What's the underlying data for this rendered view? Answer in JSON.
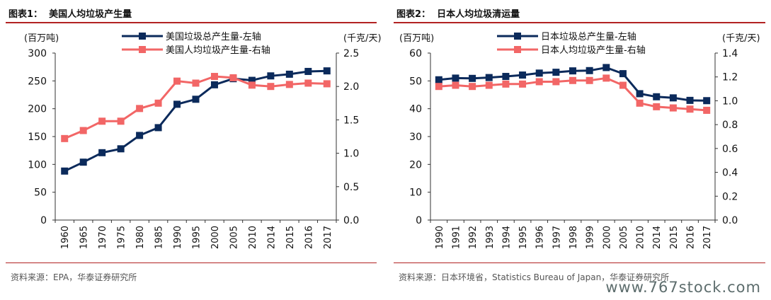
{
  "figures": [
    {
      "title": "图表1：  美国人均垃圾产生量",
      "source": "资料来源：EPA，华泰证券研究所",
      "chart_data": {
        "type": "line",
        "categories": [
          "1960",
          "1965",
          "1970",
          "1975",
          "1980",
          "1985",
          "1990",
          "1995",
          "2000",
          "2005",
          "2010",
          "2014",
          "2015",
          "2016",
          "2017"
        ],
        "series": [
          {
            "name": "美国垃圾总产生量-左轴",
            "axis": "left",
            "color": "#0b2a5b",
            "marker": "square",
            "values": [
              88,
              104,
              121,
              128,
              152,
              166,
              208,
              217,
              243,
              254,
              251,
              259,
              262,
              267,
              268
            ]
          },
          {
            "name": "美国人均垃圾产生量-右轴",
            "axis": "right",
            "color": "#f26666",
            "marker": "square",
            "values": [
              1.22,
              1.34,
              1.48,
              1.48,
              1.67,
              1.75,
              2.08,
              2.05,
              2.15,
              2.13,
              2.02,
              2.0,
              2.03,
              2.05,
              2.04
            ]
          }
        ],
        "yleft": {
          "unit": "(百万吨)",
          "ylim": [
            0,
            300
          ],
          "ticks": [
            "0",
            "50",
            "100",
            "150",
            "200",
            "250",
            "300"
          ]
        },
        "yright": {
          "unit": "(千克/天)",
          "ylim": [
            0,
            2.5
          ],
          "ticks": [
            "0.0",
            "0.5",
            "1.0",
            "1.5",
            "2.0",
            "2.5"
          ]
        },
        "legend": "top-center",
        "grid": false
      }
    },
    {
      "title": "图表2：  日本人均垃圾清运量",
      "source": "资料来源：日本环境省，Statistics Bureau of Japan，华泰证券研究所",
      "chart_data": {
        "type": "line",
        "categories": [
          "1990",
          "1991",
          "1992",
          "1993",
          "1994",
          "1995",
          "1996",
          "1997",
          "1998",
          "1999",
          "2000",
          "2005",
          "2010",
          "2014",
          "2015",
          "2016",
          "2017"
        ],
        "series": [
          {
            "name": "日本垃圾总产生量-左轴",
            "axis": "left",
            "color": "#0b2a5b",
            "marker": "square",
            "values": [
              50.4,
              51.0,
              50.9,
              51.2,
              51.6,
              52.1,
              52.8,
              53.1,
              53.6,
              53.7,
              54.8,
              52.6,
              45.4,
              44.3,
              43.9,
              43.0,
              42.9
            ]
          },
          {
            "name": "日本人均垃圾产生量-右轴",
            "axis": "right",
            "color": "#f26666",
            "marker": "square",
            "values": [
              1.12,
              1.13,
              1.12,
              1.13,
              1.14,
              1.14,
              1.16,
              1.16,
              1.17,
              1.17,
              1.19,
              1.13,
              0.98,
              0.95,
              0.94,
              0.93,
              0.92
            ]
          }
        ],
        "yleft": {
          "unit": "(百万吨)",
          "ylim": [
            0,
            60
          ],
          "ticks": [
            "0",
            "10",
            "20",
            "30",
            "40",
            "50",
            "60"
          ]
        },
        "yright": {
          "unit": "(千克/天)",
          "ylim": [
            0,
            1.4
          ],
          "ticks": [
            "0.0",
            "0.2",
            "0.4",
            "0.6",
            "0.8",
            "1.0",
            "1.2",
            "1.4"
          ]
        },
        "legend": "top-center",
        "grid": false
      }
    }
  ],
  "watermark": "www.767stock.com"
}
